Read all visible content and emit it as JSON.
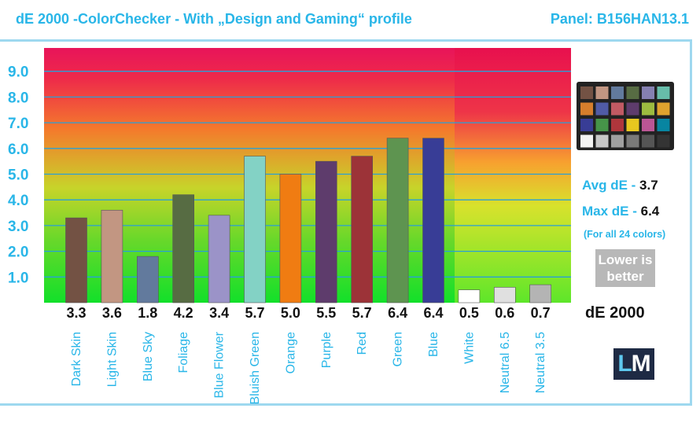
{
  "header": {
    "title": "dE 2000 -ColorChecker - With „Design and Gaming“ profile",
    "panel": "Panel: B156HAN13.1"
  },
  "side": {
    "avg_label": "Avg dE - ",
    "avg_value": "3.7",
    "max_label": "Max dE - ",
    "max_value": "6.4",
    "note": "(For all 24 colors)",
    "lower_line1": "Lower is",
    "lower_line2": "better",
    "metric": "dE 2000",
    "logo_l": "L",
    "logo_m": "M"
  },
  "colorchecker_swatches": [
    "#735244",
    "#c29682",
    "#627a9d",
    "#576c43",
    "#8580b1",
    "#67bdaa",
    "#d67e2c",
    "#505ba6",
    "#c15a63",
    "#5e3c6c",
    "#9dbc40",
    "#e0a32e",
    "#383d96",
    "#469449",
    "#af363c",
    "#e7c71f",
    "#bb5695",
    "#0885a1",
    "#f3f3f2",
    "#c8c8c8",
    "#a0a0a0",
    "#7a7a79",
    "#555555",
    "#343434"
  ],
  "chart_data": {
    "type": "bar",
    "title": "dE 2000 -ColorChecker - With „Design and Gaming“ profile",
    "categories": [
      "Dark Skin",
      "Light Skin",
      "Blue Sky",
      "Foliage",
      "Blue Flower",
      "Bluish Green",
      "Orange",
      "Purple",
      "Red",
      "Green",
      "Blue",
      "White",
      "Neutral 6.5",
      "Neutral 3.5"
    ],
    "values": [
      3.3,
      3.6,
      1.8,
      4.2,
      3.4,
      5.7,
      5.0,
      5.5,
      5.7,
      6.4,
      6.4,
      0.5,
      0.6,
      0.7
    ],
    "value_labels": [
      "3.3",
      "3.6",
      "1.8",
      "4.2",
      "3.4",
      "5.7",
      "5.0",
      "5.5",
      "5.7",
      "6.4",
      "6.4",
      "0.5",
      "0.6",
      "0.7"
    ],
    "bar_colors": [
      "#735244",
      "#c29682",
      "#627a9d",
      "#576c43",
      "#9b93c8",
      "#83d2c5",
      "#f07c12",
      "#5e3c6c",
      "#9c3338",
      "#5e9450",
      "#383d96",
      "#ffffff",
      "#e0e0e0",
      "#b4b4b4"
    ],
    "ytick_labels": [
      "1.0",
      "2.0",
      "3.0",
      "4.0",
      "5.0",
      "6.0",
      "7.0",
      "8.0",
      "9.0"
    ],
    "yticks": [
      1,
      2,
      3,
      4,
      5,
      6,
      7,
      8,
      9
    ],
    "ylim": [
      0,
      10
    ],
    "grid": true
  }
}
